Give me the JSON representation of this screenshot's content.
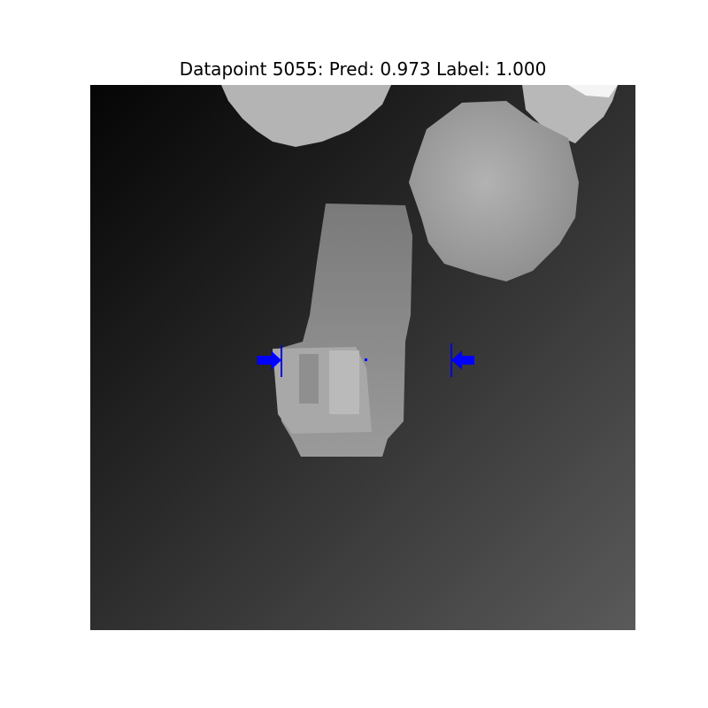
{
  "figure": {
    "title": "Datapoint 5055: Pred: 0.973 Label: 1.000"
  },
  "colors": {
    "background": "#ffffff",
    "grasp_marker": "#0000ff"
  },
  "objects": [
    {
      "name": "top-object",
      "shade": "#b8b8b8"
    },
    {
      "name": "round-object",
      "shade": "#a6a6a6"
    },
    {
      "name": "corner-object",
      "shade": "#c8c8c8"
    },
    {
      "name": "bracket-object",
      "shade": "#8a8a8a"
    }
  ],
  "grasp": {
    "markers": [
      "left-arrow",
      "right-arrow",
      "center-point"
    ]
  }
}
